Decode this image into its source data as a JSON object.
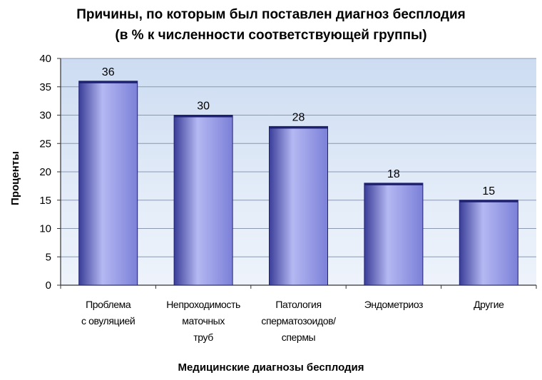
{
  "chart_data": {
    "type": "bar",
    "title": "Причины, по которым был поставлен диагноз бесплодия",
    "subtitle": "(в % к численности соответствующей группы)",
    "xlabel": "Медицинские диагнозы бесплодия",
    "ylabel": "Проценты",
    "ylim": [
      0,
      40
    ],
    "yticks": [
      0,
      5,
      10,
      15,
      20,
      25,
      30,
      35,
      40
    ],
    "categories": [
      [
        "Проблема",
        "с овуляцией"
      ],
      [
        "Непроходимость",
        "маточных",
        "труб"
      ],
      [
        "Патология",
        "сперматозоидов/",
        "спермы"
      ],
      [
        "Эндометриоз"
      ],
      [
        "Другие"
      ]
    ],
    "values": [
      36,
      30,
      28,
      18,
      15
    ],
    "grid": true,
    "colors": {
      "bar": "#7c80d8",
      "bar_light": "#b4b8f2",
      "bar_dark": "#3a3d98",
      "bar_stroke": "#1e2070",
      "plot_bg": "#dde8f6",
      "gridline": "#8a98b0",
      "axis": "#333333"
    }
  }
}
